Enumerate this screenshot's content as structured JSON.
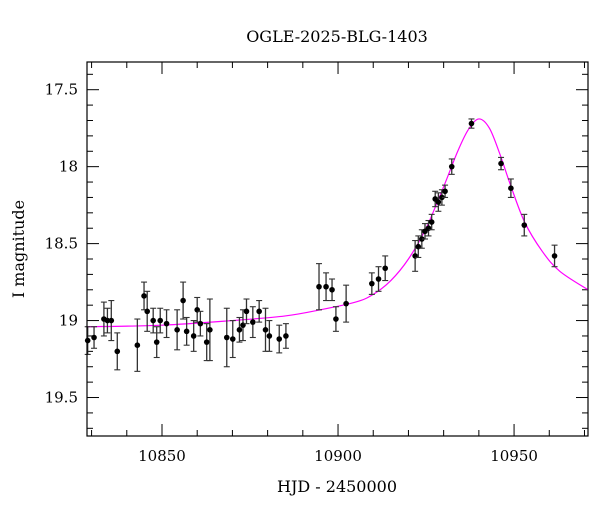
{
  "chart_data": {
    "type": "scatter",
    "title": "OGLE-2025-BLG-1403",
    "xlabel": "HJD - 2450000",
    "ylabel": "I magnitude",
    "xlim": [
      10828.7,
      10971
    ],
    "ylim": [
      19.75,
      17.32
    ],
    "y_inverted": true,
    "xticks": [
      10850,
      10900,
      10950
    ],
    "xtick_labels": [
      "10850",
      "10900",
      "10950"
    ],
    "yticks": [
      17.5,
      18,
      18.5,
      19,
      19.5
    ],
    "ytick_labels": [
      "17.5",
      "18",
      "18.5",
      "19",
      "19.5"
    ],
    "x_minor_step": 10,
    "y_minor_step": 0.1,
    "grid": false,
    "colors": {
      "data": "#000000",
      "model": "#ff00ff",
      "errorbar": "#777777"
    },
    "series": [
      {
        "kind": "data-with-errorbars",
        "points": [
          [
            10828.9,
            19.13,
            0.09
          ],
          [
            10830.7,
            19.11,
            0.07
          ],
          [
            10833.5,
            18.99,
            0.11
          ],
          [
            10834.5,
            19.0,
            0.08
          ],
          [
            10835.6,
            19.0,
            0.13
          ],
          [
            10837.3,
            19.2,
            0.12
          ],
          [
            10843.0,
            19.16,
            0.17
          ],
          [
            10844.9,
            18.84,
            0.09
          ],
          [
            10845.8,
            18.94,
            0.13
          ],
          [
            10847.5,
            19.0,
            0.08
          ],
          [
            10848.5,
            19.14,
            0.1
          ],
          [
            10849.5,
            19.0,
            0.08
          ],
          [
            10851.3,
            19.02,
            0.09
          ],
          [
            10854.3,
            19.06,
            0.13
          ],
          [
            10856.0,
            18.87,
            0.12
          ],
          [
            10857.0,
            19.07,
            0.09
          ],
          [
            10859.0,
            19.1,
            0.1
          ],
          [
            10860.0,
            18.93,
            0.08
          ],
          [
            10860.9,
            19.02,
            0.08
          ],
          [
            10862.7,
            19.14,
            0.12
          ],
          [
            10863.6,
            19.06,
            0.2
          ],
          [
            10868.4,
            19.11,
            0.19
          ],
          [
            10870.1,
            19.12,
            0.12
          ],
          [
            10872.0,
            19.06,
            0.08
          ],
          [
            10873.0,
            19.03,
            0.1
          ],
          [
            10874.0,
            18.94,
            0.08
          ],
          [
            10875.8,
            19.01,
            0.1
          ],
          [
            10877.6,
            18.94,
            0.07
          ],
          [
            10879.4,
            19.06,
            0.14
          ],
          [
            10880.5,
            19.1,
            0.1
          ],
          [
            10883.3,
            19.12,
            0.09
          ],
          [
            10885.2,
            19.1,
            0.08
          ],
          [
            10894.6,
            18.78,
            0.15
          ],
          [
            10896.6,
            18.78,
            0.09
          ],
          [
            10898.3,
            18.8,
            0.07
          ],
          [
            10899.4,
            18.99,
            0.08
          ],
          [
            10902.3,
            18.89,
            0.12
          ],
          [
            10909.6,
            18.76,
            0.07
          ],
          [
            10911.5,
            18.73,
            0.08
          ],
          [
            10913.4,
            18.66,
            0.08
          ],
          [
            10921.9,
            18.58,
            0.1
          ],
          [
            10922.8,
            18.52,
            0.07
          ],
          [
            10923.8,
            18.47,
            0.06
          ],
          [
            10924.7,
            18.42,
            0.05
          ],
          [
            10925.7,
            18.4,
            0.05
          ],
          [
            10926.6,
            18.36,
            0.05
          ],
          [
            10927.6,
            18.21,
            0.05
          ],
          [
            10928.5,
            18.23,
            0.06
          ],
          [
            10929.5,
            18.2,
            0.05
          ],
          [
            10930.4,
            18.16,
            0.04
          ],
          [
            10932.3,
            18.0,
            0.05
          ],
          [
            10937.9,
            17.72,
            0.03
          ],
          [
            10946.3,
            17.98,
            0.04
          ],
          [
            10949.1,
            18.14,
            0.06
          ],
          [
            10952.9,
            18.38,
            0.07
          ],
          [
            10961.5,
            18.58,
            0.07
          ]
        ]
      },
      {
        "kind": "model-curve",
        "x": [
          10828.7,
          10850,
          10870,
          10885,
          10895,
          10905,
          10910,
          10915,
          10920,
          10925,
          10930,
          10934,
          10937,
          10940,
          10943,
          10946,
          10949,
          10953,
          10958,
          10963,
          10971
        ],
        "y": [
          19.04,
          19.03,
          19.0,
          18.97,
          18.93,
          18.88,
          18.83,
          18.74,
          18.6,
          18.4,
          18.13,
          17.9,
          17.76,
          17.69,
          17.75,
          17.92,
          18.12,
          18.36,
          18.55,
          18.68,
          18.8
        ]
      }
    ]
  }
}
